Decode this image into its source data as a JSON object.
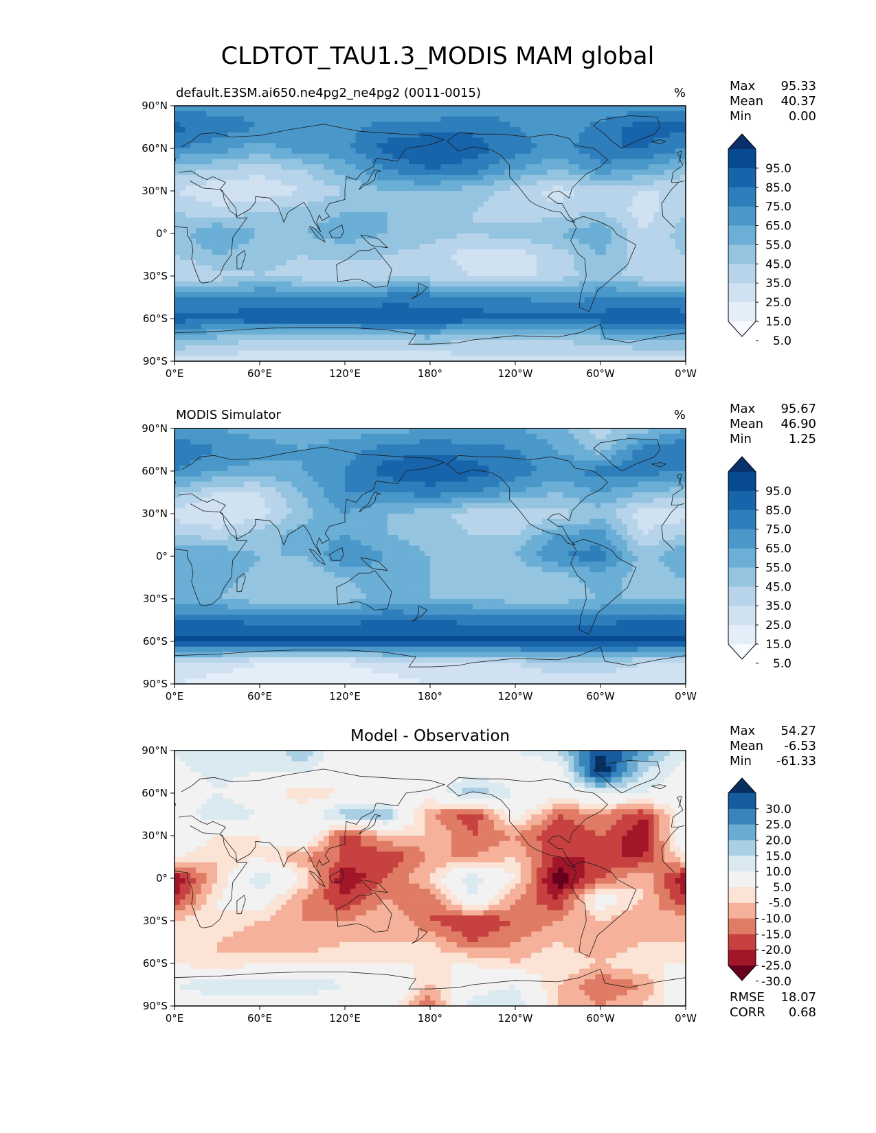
{
  "title": "CLDTOT_TAU1.3_MODIS MAM global",
  "colors": {
    "blues": [
      "#f7fbff",
      "#e3eef8",
      "#d0e1f2",
      "#b7d4ea",
      "#94c4df",
      "#6baed6",
      "#4a98c9",
      "#2e7ebc",
      "#1764ab",
      "#084a91",
      "#08306b"
    ],
    "diff": [
      "#67001f",
      "#a3162a",
      "#c6413f",
      "#e07b65",
      "#f5b19a",
      "#fbe3d6",
      "#f2f2f2",
      "#dbe9f1",
      "#a9cfe5",
      "#6aacd1",
      "#3885bc",
      "#175b9f",
      "#053061"
    ],
    "coast": "#1a1a1a"
  },
  "chart_data": [
    {
      "type": "heatmap",
      "panel": "test",
      "title_left": "default.E3SM.ai650.ne4pg2_ne4pg2 (0011-0015)",
      "title_right": "%",
      "xlim": [
        0,
        360
      ],
      "ylim": [
        -90,
        90
      ],
      "x_ticks": [
        "0°E",
        "60°E",
        "120°E",
        "180°",
        "120°W",
        "60°W",
        "0°W"
      ],
      "y_ticks": [
        "90°N",
        "60°N",
        "30°N",
        "0°",
        "30°S",
        "60°S",
        "90°S"
      ],
      "stats": {
        "labels": [
          "Max",
          "Mean",
          "Min"
        ],
        "values": [
          "95.33",
          "40.37",
          "0.00"
        ]
      },
      "colorbar_levels": [
        "95.0",
        "85.0",
        "75.0",
        "65.0",
        "55.0",
        "45.0",
        "35.0",
        "25.0",
        "15.0",
        "5.0"
      ],
      "lat": [
        90,
        75,
        60,
        45,
        30,
        15,
        0,
        -15,
        -30,
        -45,
        -60,
        -75,
        -90
      ],
      "lon": [
        0,
        30,
        60,
        90,
        120,
        150,
        180,
        210,
        240,
        270,
        300,
        330,
        360
      ],
      "values": [
        [
          60,
          60,
          60,
          55,
          60,
          60,
          55,
          60,
          60,
          55,
          55,
          60,
          60
        ],
        [
          78,
          72,
          65,
          60,
          62,
          68,
          70,
          72,
          65,
          55,
          70,
          80,
          78
        ],
        [
          65,
          60,
          50,
          60,
          62,
          80,
          85,
          80,
          70,
          60,
          75,
          75,
          65
        ],
        [
          40,
          35,
          30,
          35,
          50,
          65,
          75,
          70,
          55,
          45,
          60,
          55,
          40
        ],
        [
          25,
          15,
          15,
          25,
          35,
          45,
          45,
          40,
          30,
          20,
          30,
          25,
          25
        ],
        [
          35,
          30,
          35,
          40,
          45,
          45,
          40,
          35,
          30,
          30,
          35,
          20,
          35
        ],
        [
          40,
          55,
          45,
          45,
          50,
          45,
          40,
          35,
          40,
          45,
          55,
          25,
          40
        ],
        [
          35,
          45,
          40,
          35,
          40,
          35,
          30,
          20,
          20,
          30,
          45,
          30,
          35
        ],
        [
          25,
          30,
          35,
          30,
          25,
          30,
          30,
          25,
          20,
          30,
          40,
          30,
          25
        ],
        [
          65,
          65,
          68,
          68,
          65,
          70,
          70,
          68,
          65,
          60,
          65,
          68,
          65
        ],
        [
          80,
          78,
          82,
          82,
          82,
          85,
          82,
          80,
          78,
          78,
          80,
          85,
          80
        ],
        [
          45,
          40,
          35,
          35,
          35,
          35,
          40,
          35,
          35,
          35,
          40,
          45,
          45
        ],
        [
          20,
          20,
          15,
          15,
          15,
          15,
          15,
          20,
          20,
          20,
          20,
          20,
          20
        ]
      ]
    },
    {
      "type": "heatmap",
      "panel": "reference",
      "title_left": "MODIS Simulator",
      "title_right": "%",
      "xlim": [
        0,
        360
      ],
      "ylim": [
        -90,
        90
      ],
      "x_ticks": [
        "0°E",
        "60°E",
        "120°E",
        "180°",
        "120°W",
        "60°W",
        "0°W"
      ],
      "y_ticks": [
        "90°N",
        "60°N",
        "30°N",
        "0°",
        "30°S",
        "60°S",
        "90°S"
      ],
      "stats": {
        "labels": [
          "Max",
          "Mean",
          "Min"
        ],
        "values": [
          "95.67",
          "46.90",
          "1.25"
        ]
      },
      "colorbar_levels": [
        "95.0",
        "85.0",
        "75.0",
        "65.0",
        "55.0",
        "45.0",
        "35.0",
        "25.0",
        "15.0",
        "5.0"
      ],
      "lat": [
        90,
        75,
        60,
        45,
        30,
        15,
        0,
        -15,
        -30,
        -45,
        -60,
        -75,
        -90
      ],
      "lon": [
        0,
        30,
        60,
        90,
        120,
        150,
        180,
        210,
        240,
        270,
        300,
        330,
        360
      ],
      "values": [
        [
          55,
          55,
          50,
          50,
          50,
          50,
          55,
          55,
          55,
          50,
          30,
          40,
          55
        ],
        [
          75,
          65,
          60,
          55,
          60,
          70,
          72,
          70,
          65,
          55,
          40,
          70,
          75
        ],
        [
          65,
          55,
          50,
          55,
          65,
          80,
          85,
          80,
          70,
          60,
          70,
          70,
          65
        ],
        [
          40,
          25,
          25,
          45,
          65,
          65,
          70,
          65,
          55,
          45,
          55,
          45,
          40
        ],
        [
          20,
          15,
          20,
          40,
          55,
          45,
          40,
          30,
          25,
          30,
          40,
          20,
          20
        ],
        [
          35,
          30,
          40,
          50,
          55,
          45,
          40,
          35,
          35,
          55,
          60,
          25,
          35
        ],
        [
          55,
          55,
          45,
          45,
          65,
          55,
          45,
          40,
          45,
          65,
          70,
          40,
          55
        ],
        [
          45,
          50,
          40,
          35,
          45,
          50,
          45,
          40,
          35,
          40,
          50,
          40,
          45
        ],
        [
          45,
          45,
          40,
          35,
          40,
          50,
          45,
          45,
          40,
          40,
          45,
          45,
          45
        ],
        [
          75,
          75,
          72,
          72,
          72,
          75,
          75,
          72,
          70,
          70,
          72,
          75,
          75
        ],
        [
          88,
          88,
          88,
          88,
          88,
          88,
          88,
          88,
          88,
          88,
          88,
          88,
          88
        ],
        [
          25,
          20,
          15,
          15,
          15,
          20,
          25,
          25,
          25,
          35,
          35,
          25,
          25
        ],
        [
          15,
          10,
          10,
          10,
          10,
          10,
          15,
          15,
          15,
          15,
          15,
          15,
          15
        ]
      ]
    },
    {
      "type": "heatmap",
      "panel": "diff",
      "title_center": "Model - Observation",
      "xlim": [
        0,
        360
      ],
      "ylim": [
        -90,
        90
      ],
      "x_ticks": [
        "0°E",
        "60°E",
        "120°E",
        "180°",
        "120°W",
        "60°W",
        "0°W"
      ],
      "y_ticks": [
        "90°N",
        "60°N",
        "30°N",
        "0°",
        "30°S",
        "60°S",
        "90°S"
      ],
      "stats": {
        "labels": [
          "Max",
          "Mean",
          "Min"
        ],
        "values": [
          "54.27",
          "-6.53",
          "-61.33"
        ]
      },
      "colorbar_levels": [
        "30.0",
        "25.0",
        "20.0",
        "15.0",
        "10.0",
        "5.0",
        "-5.0",
        "-10.0",
        "-15.0",
        "-20.0",
        "-25.0",
        "-30.0"
      ],
      "metrics": {
        "labels": [
          "RMSE",
          "CORR"
        ],
        "values": [
          "18.07",
          "0.68"
        ]
      },
      "lat": [
        90,
        75,
        60,
        45,
        30,
        15,
        0,
        -15,
        -30,
        -45,
        -60,
        -75,
        -90
      ],
      "lon": [
        0,
        30,
        60,
        90,
        120,
        150,
        180,
        210,
        240,
        270,
        300,
        330,
        360
      ],
      "values": [
        [
          5,
          10,
          5,
          15,
          -5,
          0,
          0,
          0,
          5,
          10,
          30,
          20,
          5
        ],
        [
          3,
          7,
          5,
          5,
          2,
          0,
          -2,
          2,
          0,
          0,
          35,
          10,
          3
        ],
        [
          0,
          5,
          0,
          -10,
          -5,
          -5,
          0,
          15,
          5,
          0,
          5,
          5,
          0
        ],
        [
          0,
          10,
          5,
          0,
          15,
          15,
          -15,
          -25,
          0,
          -20,
          -15,
          -25,
          0
        ],
        [
          5,
          -5,
          -5,
          5,
          -25,
          -10,
          -10,
          -20,
          -15,
          -25,
          -20,
          -30,
          5
        ],
        [
          -5,
          -10,
          -5,
          -15,
          -20,
          -25,
          -15,
          -15,
          -10,
          -25,
          -25,
          -25,
          -5
        ],
        [
          -30,
          -10,
          10,
          -5,
          -30,
          -20,
          -10,
          10,
          -5,
          -35,
          -20,
          -10,
          -30
        ],
        [
          -25,
          -5,
          0,
          -15,
          -25,
          -15,
          -20,
          5,
          -15,
          -25,
          0,
          -10,
          -25
        ],
        [
          -10,
          -5,
          -10,
          -15,
          -15,
          -10,
          -20,
          -25,
          -20,
          -15,
          -10,
          -15,
          -10
        ],
        [
          -10,
          -10,
          -15,
          -15,
          -10,
          -10,
          -10,
          -20,
          -15,
          -10,
          -15,
          -10,
          -10
        ],
        [
          -5,
          -10,
          -5,
          -5,
          -5,
          -5,
          -5,
          -5,
          -10,
          -5,
          -10,
          -5,
          -5
        ],
        [
          5,
          10,
          10,
          10,
          5,
          5,
          -10,
          0,
          5,
          -10,
          -20,
          -15,
          5
        ],
        [
          0,
          0,
          0,
          0,
          0,
          0,
          -20,
          10,
          10,
          -10,
          -15,
          -10,
          0
        ]
      ]
    }
  ]
}
